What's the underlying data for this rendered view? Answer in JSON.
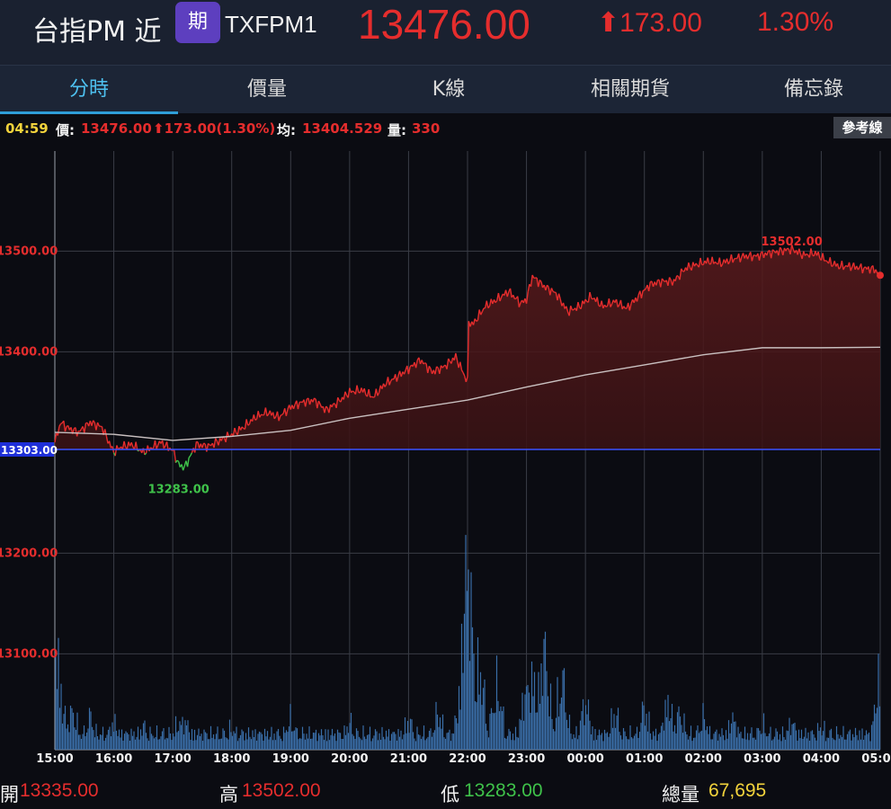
{
  "header": {
    "name": "台指PM 近",
    "badge": "期",
    "code": "TXFPM1",
    "price": "13476.00",
    "change_arrow": "⬆",
    "change": "173.00",
    "percent": "1.30%"
  },
  "tabs": [
    {
      "label": "分時",
      "active": true
    },
    {
      "label": "價量",
      "active": false
    },
    {
      "label": "K線",
      "active": false
    },
    {
      "label": "相關期貨",
      "active": false
    },
    {
      "label": "備忘錄",
      "active": false
    }
  ],
  "infobar": {
    "time": "04:59",
    "price_label": "價:",
    "price_value": "13476.00",
    "change_value": "⬆173.00(1.30%)",
    "avg_label": "均:",
    "avg_value": "13404.529",
    "vol_label": "量:",
    "vol_value": "330",
    "ref_button": "參考線"
  },
  "footer": {
    "open_label": "開",
    "open_value": "13335.00",
    "high_label": "高",
    "high_value": "13502.00",
    "low_label": "低",
    "low_value": "13283.00",
    "total_label": "總量",
    "total_value": "67,695"
  },
  "colors": {
    "up": "#e52d2d",
    "down": "#3fc24a",
    "volume": "#3a6ea8",
    "avg_line": "#c9c0c0",
    "ref_line": "#3b52ff",
    "tab_active": "#4ec1f0",
    "total": "#f2d33c"
  },
  "chart_data": {
    "type": "line",
    "ref_price": 13303.0,
    "ref_label": "13303.00",
    "y_ticks": [
      {
        "value": 13500,
        "label": "13500.00"
      },
      {
        "value": 13400,
        "label": "13400.00"
      },
      {
        "value": 13200,
        "label": "13200.00"
      },
      {
        "value": 13100,
        "label": "13100.00"
      }
    ],
    "x_ticks": [
      "15:00",
      "16:00",
      "17:00",
      "18:00",
      "19:00",
      "20:00",
      "21:00",
      "22:00",
      "23:00",
      "00:00",
      "01:00",
      "02:00",
      "03:00",
      "04:00",
      "05:00"
    ],
    "high_label": "13502.00",
    "low_label": "13283.00",
    "price_series": [
      [
        0,
        13310
      ],
      [
        0.1,
        13330
      ],
      [
        0.2,
        13325
      ],
      [
        0.4,
        13320
      ],
      [
        0.6,
        13330
      ],
      [
        0.8,
        13325
      ],
      [
        1.0,
        13300
      ],
      [
        1.1,
        13305
      ],
      [
        1.3,
        13308
      ],
      [
        1.5,
        13300
      ],
      [
        1.8,
        13310
      ],
      [
        2.0,
        13302
      ],
      [
        2.1,
        13288
      ],
      [
        2.2,
        13285
      ],
      [
        2.4,
        13308
      ],
      [
        2.6,
        13306
      ],
      [
        2.8,
        13312
      ],
      [
        3.0,
        13318
      ],
      [
        3.2,
        13325
      ],
      [
        3.4,
        13335
      ],
      [
        3.6,
        13340
      ],
      [
        3.8,
        13335
      ],
      [
        4.0,
        13345
      ],
      [
        4.2,
        13350
      ],
      [
        4.4,
        13352
      ],
      [
        4.6,
        13342
      ],
      [
        4.8,
        13350
      ],
      [
        5.0,
        13360
      ],
      [
        5.2,
        13362
      ],
      [
        5.4,
        13355
      ],
      [
        5.6,
        13368
      ],
      [
        5.8,
        13375
      ],
      [
        6.0,
        13383
      ],
      [
        6.2,
        13392
      ],
      [
        6.4,
        13380
      ],
      [
        6.6,
        13385
      ],
      [
        6.8,
        13395
      ],
      [
        7.0,
        13370
      ],
      [
        7.02,
        13428
      ],
      [
        7.1,
        13428
      ],
      [
        7.3,
        13445
      ],
      [
        7.5,
        13452
      ],
      [
        7.7,
        13460
      ],
      [
        7.9,
        13448
      ],
      [
        8.0,
        13452
      ],
      [
        8.1,
        13475
      ],
      [
        8.3,
        13465
      ],
      [
        8.5,
        13458
      ],
      [
        8.7,
        13440
      ],
      [
        8.9,
        13445
      ],
      [
        9.1,
        13455
      ],
      [
        9.3,
        13445
      ],
      [
        9.5,
        13450
      ],
      [
        9.7,
        13443
      ],
      [
        9.9,
        13455
      ],
      [
        10.1,
        13467
      ],
      [
        10.3,
        13470
      ],
      [
        10.5,
        13470
      ],
      [
        10.7,
        13483
      ],
      [
        10.9,
        13487
      ],
      [
        11.1,
        13490
      ],
      [
        11.3,
        13488
      ],
      [
        11.5,
        13492
      ],
      [
        11.7,
        13495
      ],
      [
        11.9,
        13495
      ],
      [
        12.1,
        13498
      ],
      [
        12.3,
        13500
      ],
      [
        12.5,
        13502
      ],
      [
        12.7,
        13496
      ],
      [
        12.9,
        13498
      ],
      [
        13.1,
        13490
      ],
      [
        13.3,
        13485
      ],
      [
        13.5,
        13485
      ],
      [
        13.7,
        13483
      ],
      [
        13.9,
        13482
      ],
      [
        14.0,
        13476
      ]
    ],
    "avg_series": [
      [
        0,
        13320
      ],
      [
        1,
        13318
      ],
      [
        2,
        13312
      ],
      [
        3,
        13316
      ],
      [
        4,
        13322
      ],
      [
        5,
        13334
      ],
      [
        6,
        13343
      ],
      [
        7,
        13352
      ],
      [
        8,
        13365
      ],
      [
        9,
        13377
      ],
      [
        10,
        13387
      ],
      [
        11,
        13397
      ],
      [
        12,
        13404
      ],
      [
        13,
        13404
      ],
      [
        14,
        13404.529
      ]
    ],
    "volume_max": 1000,
    "volume_spikes": [
      [
        0,
        600
      ],
      [
        0.1,
        260
      ],
      [
        0.3,
        210
      ],
      [
        0.6,
        180
      ],
      [
        1.0,
        150
      ],
      [
        1.5,
        130
      ],
      [
        2.1,
        150
      ],
      [
        2.2,
        160
      ],
      [
        3.0,
        120
      ],
      [
        4.0,
        170
      ],
      [
        5.0,
        150
      ],
      [
        6.0,
        160
      ],
      [
        6.5,
        200
      ],
      [
        6.9,
        320
      ],
      [
        7.0,
        1000
      ],
      [
        7.05,
        580
      ],
      [
        7.2,
        450
      ],
      [
        7.5,
        350
      ],
      [
        8.0,
        330
      ],
      [
        8.1,
        390
      ],
      [
        8.3,
        540
      ],
      [
        8.6,
        380
      ],
      [
        9.0,
        250
      ],
      [
        9.5,
        200
      ],
      [
        10.0,
        220
      ],
      [
        10.4,
        250
      ],
      [
        10.6,
        200
      ],
      [
        11.0,
        180
      ],
      [
        11.5,
        170
      ],
      [
        12.0,
        140
      ],
      [
        12.5,
        150
      ],
      [
        13.0,
        130
      ],
      [
        13.5,
        90
      ],
      [
        14.0,
        400
      ],
      [
        14.02,
        180
      ]
    ]
  }
}
